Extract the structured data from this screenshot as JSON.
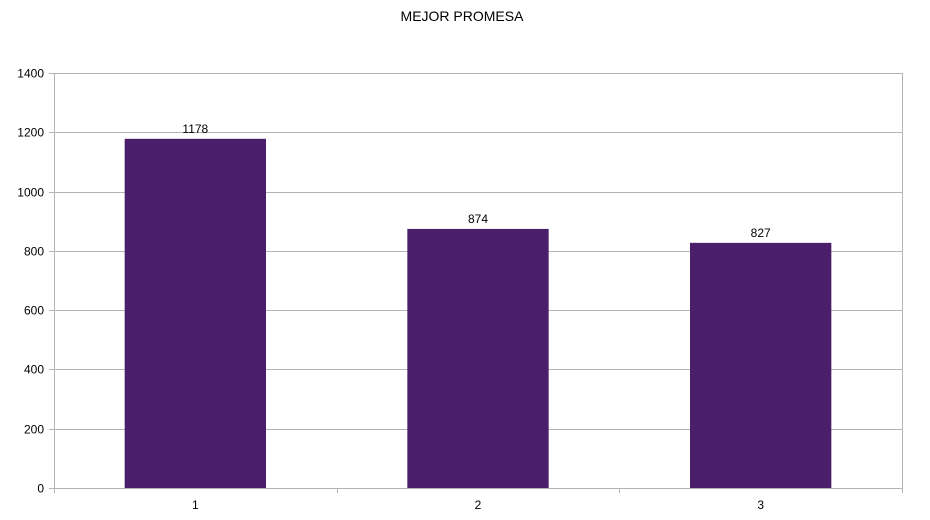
{
  "chart_data": {
    "type": "bar",
    "title": "MEJOR PROMESA",
    "xlabel": "",
    "ylabel": "",
    "categories": [
      "1",
      "2",
      "3"
    ],
    "values": [
      1178,
      874,
      827
    ],
    "data_labels": [
      "1178",
      "874",
      "827"
    ],
    "ylim": [
      0,
      1400
    ],
    "y_ticks": [
      0,
      200,
      400,
      600,
      800,
      1000,
      1200,
      1400
    ],
    "y_tick_labels": [
      "0",
      "200",
      "400",
      "600",
      "800",
      "1000",
      "1200",
      "1400"
    ],
    "grid": true,
    "legend": "none",
    "colors": {
      "bar": "#4b1e6b",
      "grid": "#b3b3b3",
      "axis": "#b3b3b3",
      "text": "#000000"
    }
  }
}
